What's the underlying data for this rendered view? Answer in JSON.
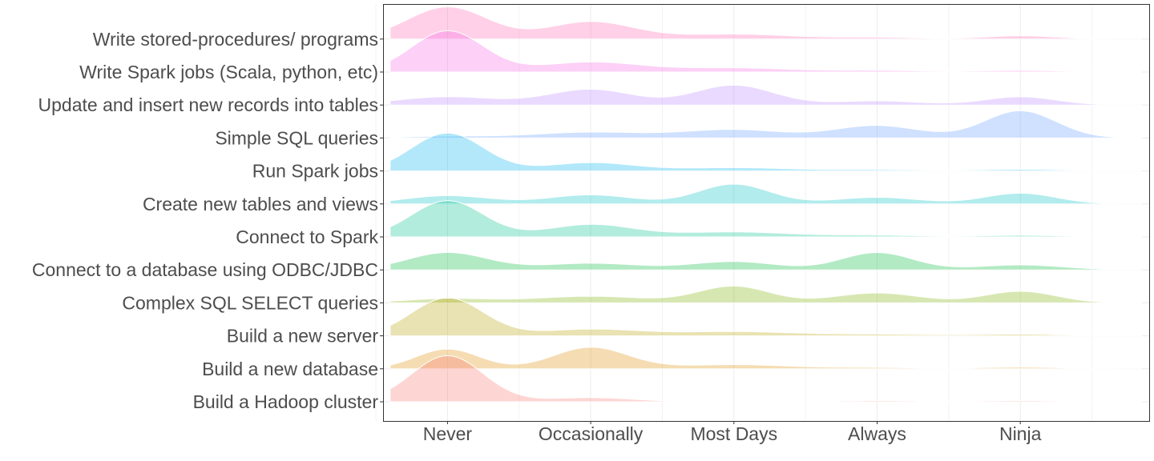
{
  "chart_data": {
    "type": "ridgeline",
    "title": "",
    "xlabel": "",
    "ylabel": "",
    "x_tick_labels": [
      "Never",
      "Occasionally",
      "Most Days",
      "Always",
      "Ninja"
    ],
    "x_tick_values": [
      1,
      2,
      3,
      4,
      5
    ],
    "xlim": [
      0.55,
      5.9
    ],
    "grid": true,
    "legend": "none",
    "series": [
      {
        "name": "Build a Hadoop cluster",
        "color": "#F8766D",
        "peaks": [
          [
            1,
            0.56,
            0.25
          ],
          [
            2,
            0.05,
            0.3
          ],
          [
            4,
            0.015,
            0.3
          ],
          [
            5,
            0.015,
            0.3
          ]
        ]
      },
      {
        "name": "Build a new database",
        "color": "#DE8C00",
        "peaks": [
          [
            1,
            0.24,
            0.22
          ],
          [
            2,
            0.26,
            0.26
          ],
          [
            3,
            0.05,
            0.4
          ],
          [
            4,
            0.015,
            0.3
          ],
          [
            5,
            0.02,
            0.3
          ]
        ]
      },
      {
        "name": "Build a new server",
        "color": "#B79F00",
        "peaks": [
          [
            1,
            0.46,
            0.25
          ],
          [
            2,
            0.08,
            0.35
          ],
          [
            3,
            0.05,
            0.4
          ],
          [
            4,
            0.02,
            0.4
          ],
          [
            5,
            0.02,
            0.3
          ]
        ]
      },
      {
        "name": "Complex SQL SELECT queries ",
        "color": "#7CAE00",
        "peaks": [
          [
            1,
            0.05,
            0.3
          ],
          [
            2,
            0.08,
            0.4
          ],
          [
            3,
            0.2,
            0.25
          ],
          [
            4,
            0.12,
            0.3
          ],
          [
            5,
            0.14,
            0.25
          ]
        ]
      },
      {
        "name": "Connect to a database using ODBC/JDBC",
        "color": "#00BA38",
        "peaks": [
          [
            1,
            0.21,
            0.28
          ],
          [
            2,
            0.08,
            0.35
          ],
          [
            3,
            0.1,
            0.3
          ],
          [
            4,
            0.21,
            0.25
          ],
          [
            5,
            0.06,
            0.3
          ]
        ]
      },
      {
        "name": "Connect to Spark",
        "color": "#00C08B",
        "peaks": [
          [
            1,
            0.44,
            0.25
          ],
          [
            2,
            0.15,
            0.3
          ],
          [
            3,
            0.06,
            0.4
          ],
          [
            4,
            0.02,
            0.3
          ],
          [
            5,
            0.02,
            0.3
          ]
        ]
      },
      {
        "name": "Create new tables and views",
        "color": "#00BFC4",
        "peaks": [
          [
            1,
            0.1,
            0.3
          ],
          [
            2,
            0.11,
            0.3
          ],
          [
            3,
            0.24,
            0.25
          ],
          [
            4,
            0.08,
            0.3
          ],
          [
            5,
            0.13,
            0.25
          ]
        ]
      },
      {
        "name": "Run Spark jobs",
        "color": "#00B4F0",
        "peaks": [
          [
            1,
            0.46,
            0.25
          ],
          [
            2,
            0.1,
            0.3
          ],
          [
            3,
            0.04,
            0.4
          ],
          [
            4,
            0.015,
            0.3
          ],
          [
            5,
            0.02,
            0.3
          ]
        ]
      },
      {
        "name": "Simple SQL queries",
        "color": "#619CFF",
        "peaks": [
          [
            1,
            0.02,
            0.3
          ],
          [
            2,
            0.07,
            0.4
          ],
          [
            3,
            0.1,
            0.35
          ],
          [
            4,
            0.15,
            0.3
          ],
          [
            5,
            0.33,
            0.25
          ]
        ]
      },
      {
        "name": "Update and insert new records into tables",
        "color": "#B983FF",
        "peaks": [
          [
            1,
            0.1,
            0.35
          ],
          [
            2,
            0.19,
            0.3
          ],
          [
            3,
            0.24,
            0.28
          ],
          [
            4,
            0.05,
            0.3
          ],
          [
            5,
            0.1,
            0.25
          ]
        ]
      },
      {
        "name": "Write Spark jobs (Scala, python, etc)",
        "color": "#F564E3",
        "peaks": [
          [
            1,
            0.5,
            0.25
          ],
          [
            2,
            0.12,
            0.35
          ],
          [
            3,
            0.05,
            0.4
          ],
          [
            4,
            0.02,
            0.3
          ],
          [
            5,
            0.02,
            0.3
          ]
        ]
      },
      {
        "name": "Write stored-procedures/ programs",
        "color": "#FF64B0",
        "peaks": [
          [
            1,
            0.39,
            0.28
          ],
          [
            2,
            0.21,
            0.3
          ],
          [
            3,
            0.06,
            0.4
          ],
          [
            4,
            0.02,
            0.3
          ],
          [
            5,
            0.04,
            0.25
          ]
        ]
      }
    ]
  }
}
